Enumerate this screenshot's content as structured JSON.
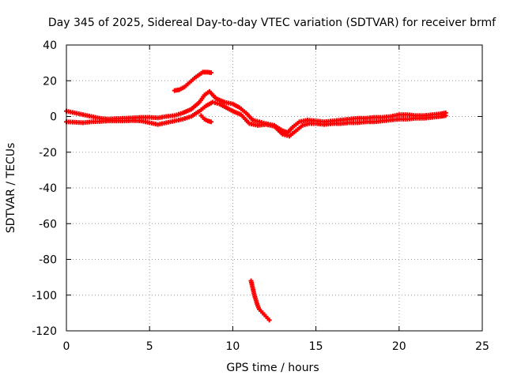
{
  "chart_data": {
    "type": "scatter",
    "title": "Day 345 of 2025, Sidereal Day-to-day VTEC variation (SDTVAR) for receiver brmf",
    "xlabel": "GPS time / hours",
    "ylabel": "SDTVAR / TECUs",
    "xlim": [
      0,
      25
    ],
    "ylim": [
      -120,
      40
    ],
    "x_ticks": [
      0,
      5,
      10,
      15,
      20,
      25
    ],
    "y_ticks": [
      40,
      20,
      0,
      -20,
      -40,
      -60,
      -80,
      -100,
      -120
    ],
    "x_tick_labels": [
      "0",
      "5",
      "10",
      "15",
      "20",
      "25"
    ],
    "y_tick_labels": [
      "40",
      "20",
      "0",
      "-20",
      "-40",
      "-60",
      "-80",
      "-100",
      "-120"
    ],
    "grid": true,
    "marker": "+",
    "color": "#ff0000",
    "series": [
      {
        "name": "band-upper",
        "points": [
          [
            0.0,
            3.0
          ],
          [
            0.5,
            2.0
          ],
          [
            1.0,
            1.0
          ],
          [
            1.5,
            0.0
          ],
          [
            2.0,
            -1.0
          ],
          [
            2.5,
            -1.5
          ],
          [
            3.0,
            -1.2
          ],
          [
            3.5,
            -1.0
          ],
          [
            4.0,
            -0.8
          ],
          [
            4.5,
            -0.5
          ],
          [
            5.0,
            -0.5
          ],
          [
            5.5,
            -0.8
          ],
          [
            6.0,
            0.0
          ],
          [
            6.5,
            0.5
          ],
          [
            7.0,
            2.0
          ],
          [
            7.5,
            4.0
          ],
          [
            8.0,
            8.0
          ],
          [
            8.3,
            12.0
          ],
          [
            8.6,
            14.0
          ],
          [
            9.0,
            10.0
          ],
          [
            9.5,
            8.0
          ],
          [
            10.0,
            7.0
          ],
          [
            10.4,
            5.0
          ],
          [
            10.8,
            2.0
          ],
          [
            11.2,
            -2.0
          ],
          [
            11.6,
            -3.0
          ],
          [
            12.0,
            -4.0
          ],
          [
            12.5,
            -5.0
          ],
          [
            13.0,
            -8.0
          ],
          [
            13.3,
            -9.0
          ],
          [
            13.6,
            -6.0
          ],
          [
            14.0,
            -3.0
          ],
          [
            14.5,
            -2.0
          ],
          [
            15.0,
            -2.5
          ],
          [
            15.5,
            -3.0
          ],
          [
            16.0,
            -2.5
          ],
          [
            16.5,
            -2.0
          ],
          [
            17.0,
            -1.5
          ],
          [
            17.5,
            -1.0
          ],
          [
            18.0,
            -1.0
          ],
          [
            18.5,
            -0.5
          ],
          [
            19.0,
            -0.5
          ],
          [
            19.5,
            0.0
          ],
          [
            20.0,
            1.0
          ],
          [
            20.5,
            1.0
          ],
          [
            21.0,
            0.5
          ],
          [
            21.5,
            0.5
          ],
          [
            22.0,
            1.0
          ],
          [
            22.5,
            1.5
          ],
          [
            22.8,
            2.0
          ]
        ]
      },
      {
        "name": "band-lower",
        "points": [
          [
            0.0,
            -3.0
          ],
          [
            0.5,
            -3.2
          ],
          [
            1.0,
            -3.5
          ],
          [
            1.5,
            -3.0
          ],
          [
            2.0,
            -2.8
          ],
          [
            2.5,
            -2.5
          ],
          [
            3.0,
            -2.5
          ],
          [
            3.5,
            -2.5
          ],
          [
            4.0,
            -2.3
          ],
          [
            4.5,
            -2.5
          ],
          [
            5.0,
            -3.5
          ],
          [
            5.5,
            -4.5
          ],
          [
            6.0,
            -3.5
          ],
          [
            6.5,
            -2.5
          ],
          [
            7.0,
            -1.5
          ],
          [
            7.5,
            0.0
          ],
          [
            8.0,
            3.0
          ],
          [
            8.4,
            6.0
          ],
          [
            8.8,
            8.0
          ],
          [
            9.2,
            7.0
          ],
          [
            9.6,
            5.0
          ],
          [
            10.0,
            3.0
          ],
          [
            10.5,
            1.0
          ],
          [
            11.0,
            -4.0
          ],
          [
            11.5,
            -5.0
          ],
          [
            12.0,
            -4.5
          ],
          [
            12.5,
            -5.5
          ],
          [
            13.0,
            -10.0
          ],
          [
            13.4,
            -11.0
          ],
          [
            13.8,
            -8.0
          ],
          [
            14.2,
            -5.0
          ],
          [
            14.6,
            -4.0
          ],
          [
            15.0,
            -4.0
          ],
          [
            15.5,
            -4.5
          ],
          [
            16.0,
            -4.0
          ],
          [
            16.5,
            -4.0
          ],
          [
            17.0,
            -3.5
          ],
          [
            17.5,
            -3.5
          ],
          [
            18.0,
            -3.0
          ],
          [
            18.5,
            -3.0
          ],
          [
            19.0,
            -2.5
          ],
          [
            19.5,
            -2.0
          ],
          [
            20.0,
            -1.5
          ],
          [
            20.5,
            -1.5
          ],
          [
            21.0,
            -1.0
          ],
          [
            21.5,
            -1.0
          ],
          [
            22.0,
            -0.5
          ],
          [
            22.5,
            0.0
          ],
          [
            22.8,
            0.5
          ]
        ]
      },
      {
        "name": "upper-arc",
        "points": [
          [
            6.5,
            14.5
          ],
          [
            6.8,
            15.0
          ],
          [
            7.1,
            16.5
          ],
          [
            7.4,
            19.0
          ],
          [
            7.7,
            21.5
          ],
          [
            8.0,
            23.5
          ],
          [
            8.2,
            24.8
          ],
          [
            8.5,
            24.8
          ],
          [
            8.7,
            24.5
          ]
        ]
      },
      {
        "name": "dip-segment",
        "points": [
          [
            8.1,
            0.5
          ],
          [
            8.3,
            -1.5
          ],
          [
            8.5,
            -2.5
          ],
          [
            8.7,
            -3.0
          ]
        ]
      },
      {
        "name": "outlier-drop",
        "points": [
          [
            11.1,
            -92.0
          ],
          [
            11.2,
            -96.0
          ],
          [
            11.3,
            -100.0
          ],
          [
            11.4,
            -103.0
          ],
          [
            11.5,
            -106.0
          ],
          [
            11.6,
            -108.0
          ],
          [
            11.8,
            -110.0
          ],
          [
            12.0,
            -112.0
          ],
          [
            12.2,
            -114.0
          ]
        ]
      }
    ]
  }
}
